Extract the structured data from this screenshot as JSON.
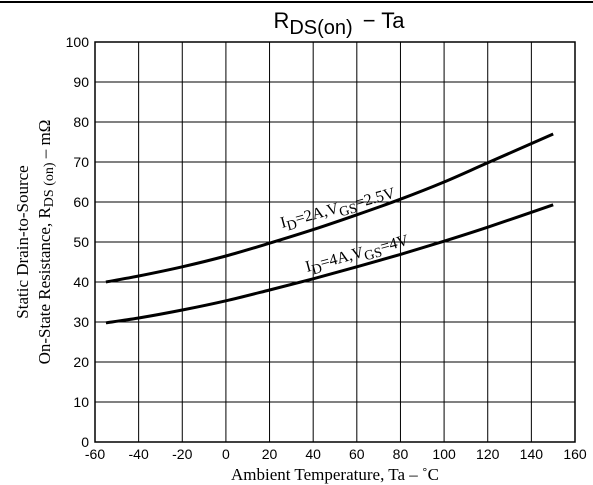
{
  "chart_data": {
    "type": "line",
    "title": {
      "main": "R",
      "sub": "DS(on)",
      "suffix": "−  Ta"
    },
    "xlabel": "Ambient Temperature, Ta  –  ˚C",
    "ylabel": {
      "line1": "Static Drain-to-Source",
      "line2_prefix": "On-State Resistance, R",
      "line2_sub": "DS (on)",
      "line2_suffix": " –  mΩ"
    },
    "xlim": [
      -60,
      160
    ],
    "ylim": [
      0,
      100
    ],
    "x_ticks": [
      "-60",
      "-40",
      "-20",
      "0",
      "20",
      "40",
      "60",
      "80",
      "100",
      "120",
      "140",
      "160"
    ],
    "y_ticks": [
      "0",
      "10",
      "20",
      "30",
      "40",
      "50",
      "60",
      "70",
      "80",
      "90",
      "100"
    ],
    "grid": true,
    "series": [
      {
        "name": "ID=2A,VGS=2.5V",
        "label": {
          "I": "I",
          "Isub": "D",
          "mid": "=2A,V",
          "Vsub": "GS",
          "end": "=2.5V"
        },
        "x": [
          -55,
          -40,
          -20,
          0,
          20,
          40,
          60,
          80,
          100,
          120,
          150
        ],
        "y": [
          40,
          41.5,
          43.8,
          46.5,
          49.7,
          53.1,
          56.8,
          60.7,
          65,
          69.8,
          77
        ]
      },
      {
        "name": "ID=4A,VGS=4V",
        "label": {
          "I": "I",
          "Isub": "D",
          "mid": "=4A,V",
          "Vsub": "GS",
          "end": "=4V"
        },
        "x": [
          -55,
          -40,
          -20,
          0,
          20,
          40,
          60,
          80,
          100,
          120,
          150
        ],
        "y": [
          29.8,
          31,
          33,
          35.3,
          38,
          40.8,
          43.8,
          46.9,
          50.2,
          53.7,
          59.3
        ]
      }
    ]
  },
  "colors": {
    "line": "#000000",
    "grid": "#000000",
    "background": "#ffffff"
  }
}
